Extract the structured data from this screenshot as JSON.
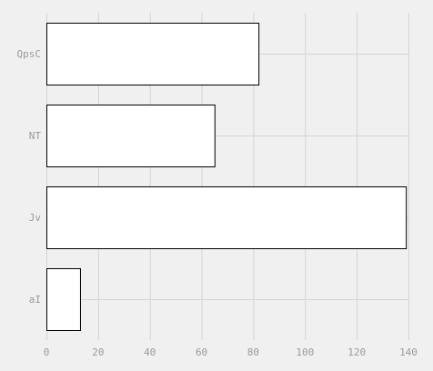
{
  "chart_data": {
    "type": "bar",
    "orientation": "horizontal",
    "categories": [
      "QpsC",
      "NT",
      "Jv",
      "aI"
    ],
    "values": [
      82,
      65,
      139,
      13
    ],
    "xlim": [
      0,
      140
    ],
    "xticks": [
      0,
      20,
      40,
      60,
      80,
      100,
      120,
      140
    ],
    "title": "",
    "xlabel": "",
    "ylabel": "",
    "grid": true,
    "bar_fill": "#ffffff",
    "bar_stroke": "#000000",
    "grid_color": "#d4d4d4",
    "tick_label_color": "#9a9a9a",
    "background": "#f0f0f0"
  }
}
